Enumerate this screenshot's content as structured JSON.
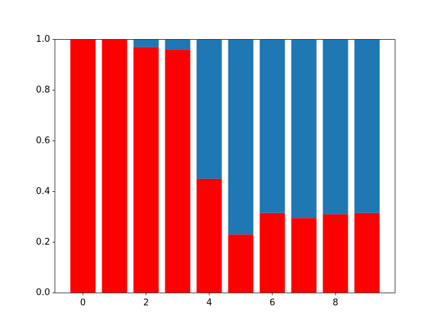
{
  "chart_data": {
    "type": "bar",
    "stacked": true,
    "x": [
      0,
      1,
      2,
      3,
      4,
      5,
      6,
      7,
      8,
      9
    ],
    "series": [
      {
        "color": "#ff0000",
        "values": [
          1.0,
          1.0,
          0.97,
          0.96,
          0.45,
          0.23,
          0.315,
          0.295,
          0.31,
          0.315
        ]
      },
      {
        "color": "#1f77b4",
        "values": [
          0,
          0,
          0.03,
          0.04,
          0.55,
          0.77,
          0.685,
          0.705,
          0.69,
          0.685
        ]
      }
    ],
    "bar_width": 0.8,
    "xlim": [
      -0.89,
      9.89
    ],
    "xticks": [
      0,
      2,
      4,
      6,
      8
    ],
    "ylim": [
      0,
      1
    ],
    "yticks": [
      {
        "value": 0,
        "label": "0.0"
      },
      0.2,
      0.4,
      0.6,
      0.8,
      {
        "value": 1,
        "label": "1.0"
      }
    ],
    "grid": false
  }
}
